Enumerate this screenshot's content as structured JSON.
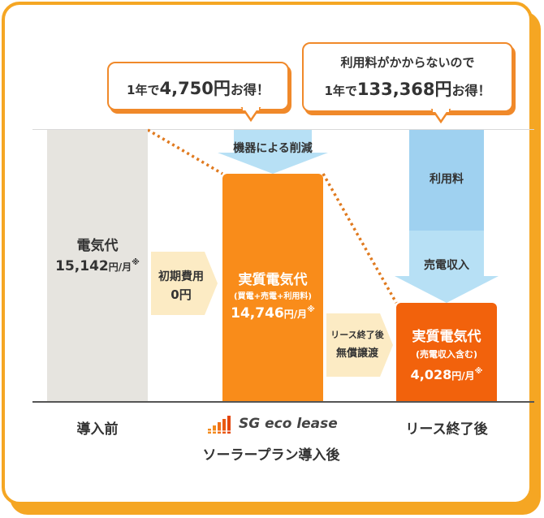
{
  "callouts": {
    "left_prefix": "1年で",
    "left_amount": "4,750円",
    "left_suffix": "お得！",
    "right_line1": "利用料がかからないので",
    "right_prefix": "1年で",
    "right_amount": "133,368円",
    "right_suffix": "お得！"
  },
  "bars": {
    "before": {
      "label": "電気代",
      "value": "15,142",
      "unit": "円/月",
      "note": "※"
    },
    "after": {
      "label": "実質電気代",
      "sub": "(買電+売電+利用料)",
      "value": "14,746",
      "unit": "円/月",
      "note": "※"
    },
    "end": {
      "label": "実質電気代",
      "sub": "(売電収入含む)",
      "value": "4,028",
      "unit": "円/月",
      "note": "※"
    }
  },
  "arrows": {
    "initial_cost_label": "初期費用",
    "initial_cost_value": "0円",
    "transfer_line1": "リース終了後",
    "transfer_line2": "無償譲渡",
    "equipment_reduction": "機器による削減",
    "usage_fee": "利用料",
    "sales_income": "売電収入"
  },
  "categories": {
    "before": "導入前",
    "logo_text": "SG eco lease",
    "after": "ソーラープラン導入後",
    "end": "リース終了後"
  },
  "colors": {
    "frame": "#f5a623",
    "bar_gray": "#e6e4df",
    "bar_orange": "#f98c1a",
    "bar_orange_dark": "#f2620c",
    "arrow_yellow": "#fcebc4",
    "arrow_blue": "#b7e0f5",
    "arrow_blue_dark": "#9fd1f0"
  }
}
